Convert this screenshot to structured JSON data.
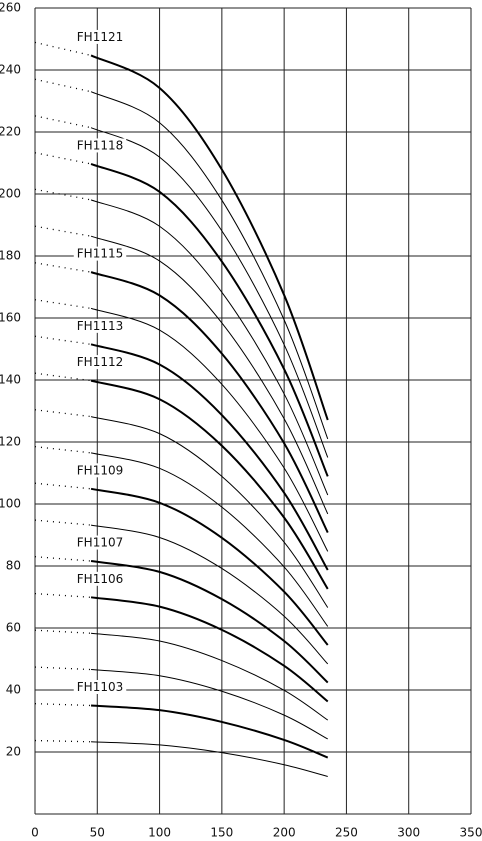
{
  "chart_data": {
    "type": "line",
    "x": [
      0,
      45,
      100,
      150,
      200,
      235
    ],
    "xlim": [
      0,
      350
    ],
    "xticks": [
      0,
      50,
      100,
      150,
      200,
      250,
      300,
      350
    ],
    "ylim": [
      0,
      260
    ],
    "yticks": [
      20,
      40,
      60,
      80,
      100,
      120,
      140,
      160,
      180,
      200,
      220,
      240,
      260
    ],
    "grid": true,
    "color": "#000000",
    "series": [
      {
        "name": "FH1121",
        "values": [
          248.9,
          244.7,
          234.2,
          207.9,
          167.4,
          127.1
        ]
      },
      {
        "name": null,
        "values": [
          237,
          233,
          223,
          198,
          159.4,
          121
        ]
      },
      {
        "name": null,
        "values": [
          225.2,
          221.4,
          211.9,
          188.1,
          151.4,
          115
        ]
      },
      {
        "name": "FH1118",
        "values": [
          213.3,
          209.7,
          200.7,
          178.2,
          143.5,
          108.9
        ]
      },
      {
        "name": null,
        "values": [
          201.5,
          198.1,
          189.6,
          168.3,
          135.5,
          102.9
        ]
      },
      {
        "name": null,
        "values": [
          189.6,
          186.4,
          178.4,
          158.4,
          127.5,
          96.8
        ]
      },
      {
        "name": "FH1115",
        "values": [
          177.8,
          174.8,
          167.3,
          148.5,
          119.6,
          90.8
        ]
      },
      {
        "name": null,
        "values": [
          165.9,
          163.1,
          156.1,
          138.6,
          111.6,
          84.7
        ]
      },
      {
        "name": "FH1113",
        "values": [
          154.1,
          151.5,
          145,
          128.7,
          103.6,
          78.7
        ]
      },
      {
        "name": "FH1112",
        "values": [
          142.2,
          139.8,
          133.8,
          118.8,
          95.6,
          72.6
        ]
      },
      {
        "name": null,
        "values": [
          130.4,
          128.2,
          122.7,
          108.9,
          87.7,
          66.6
        ]
      },
      {
        "name": null,
        "values": [
          118.5,
          116.5,
          111.5,
          99,
          79.7,
          60.5
        ]
      },
      {
        "name": "FH1109",
        "values": [
          106.7,
          104.9,
          100.4,
          89.1,
          71.7,
          54.5
        ]
      },
      {
        "name": null,
        "values": [
          94.8,
          93.2,
          89.2,
          79.2,
          63.8,
          48.4
        ]
      },
      {
        "name": "FH1107",
        "values": [
          83,
          81.6,
          78.1,
          69.3,
          55.8,
          42.4
        ]
      },
      {
        "name": "FH1106",
        "values": [
          71.1,
          69.9,
          66.9,
          59.4,
          47.8,
          36.3
        ]
      },
      {
        "name": null,
        "values": [
          59.3,
          58.3,
          55.8,
          49.5,
          39.9,
          30.3
        ]
      },
      {
        "name": null,
        "values": [
          47.4,
          46.6,
          44.6,
          39.6,
          31.9,
          24.2
        ]
      },
      {
        "name": "FH1103",
        "values": [
          35.6,
          35,
          33.5,
          29.7,
          23.9,
          18.2
        ]
      },
      {
        "name": null,
        "values": [
          23.7,
          23.3,
          22.3,
          19.8,
          15.9,
          12.1
        ]
      }
    ]
  }
}
